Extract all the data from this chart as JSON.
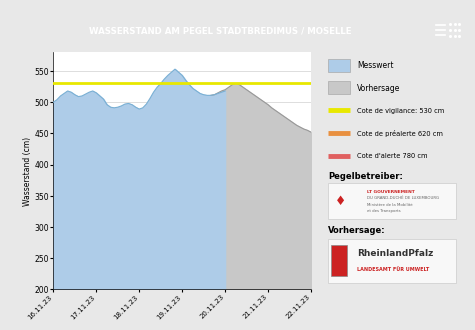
{
  "title": "WASSERSTAND AM PEGEL STADTBREDIMUS / MOSELLE",
  "title_bg": "#5c5c5c",
  "title_color": "#ffffff",
  "ylabel": "Wasserstand (cm)",
  "ylim": [
    200,
    580
  ],
  "yticks": [
    200,
    250,
    300,
    350,
    400,
    450,
    500,
    550
  ],
  "x_labels": [
    "16.11.23",
    "17.11.23",
    "18.11.23",
    "19.11.23",
    "20.11.23",
    "21.11.23",
    "22.11.23"
  ],
  "messwert_color": "#aecce8",
  "vorhersage_color": "#c8c8c8",
  "line_color_messwert": "#7ab0d4",
  "line_color_vorhersage": "#999999",
  "vigilance_level": 530,
  "prealerte_level": 620,
  "alerte_level": 780,
  "vigilance_color": "#e8e800",
  "prealerte_color": "#e89040",
  "alerte_color": "#e06060",
  "legend_messwert": "Messwert",
  "legend_vorhersage": "Vorhersage",
  "legend_vigilance": "Cote de vigilance: 530 cm",
  "legend_prealerte": "Cote de préalerte 620 cm",
  "legend_alerte": "Cote d'alerte 780 cm",
  "label_pegelbetreiber": "Pegelbetreiber:",
  "label_vorhersage_text": "Vorhersage:",
  "bg_color": "#e8e8e8",
  "plot_bg": "#ffffff",
  "panel_bg": "#ffffff",
  "grid_color": "#d0d0d0",
  "messwert_times": [
    0,
    2,
    4,
    6,
    8,
    10,
    12,
    14,
    16,
    18,
    20,
    22,
    24,
    26,
    28,
    30,
    32,
    34,
    36,
    38,
    40,
    42,
    44,
    46,
    48,
    50,
    52,
    54,
    56,
    58,
    60,
    62,
    64,
    66,
    68,
    70,
    72,
    74,
    76,
    78,
    80,
    82,
    84,
    86,
    88,
    90,
    92,
    94,
    96
  ],
  "messwert_values": [
    500,
    504,
    510,
    514,
    518,
    516,
    512,
    509,
    510,
    513,
    516,
    518,
    515,
    510,
    505,
    496,
    492,
    491,
    492,
    494,
    497,
    498,
    496,
    492,
    489,
    491,
    497,
    506,
    516,
    524,
    530,
    537,
    543,
    548,
    553,
    548,
    543,
    535,
    528,
    522,
    518,
    514,
    512,
    511,
    511,
    512,
    514,
    516,
    518
  ],
  "vorhersage_times": [
    88,
    90,
    92,
    94,
    96,
    98,
    100,
    102,
    104,
    106,
    108,
    110,
    112,
    114,
    116,
    118,
    120,
    122,
    124,
    126,
    128,
    130,
    132,
    134,
    136,
    138,
    140,
    142,
    144
  ],
  "vorhersage_values": [
    511,
    512,
    515,
    518,
    520,
    524,
    528,
    530,
    528,
    524,
    520,
    516,
    512,
    508,
    504,
    500,
    496,
    491,
    487,
    483,
    479,
    475,
    471,
    467,
    463,
    460,
    457,
    455,
    452
  ],
  "total_hours": 144,
  "split_hour": 88
}
